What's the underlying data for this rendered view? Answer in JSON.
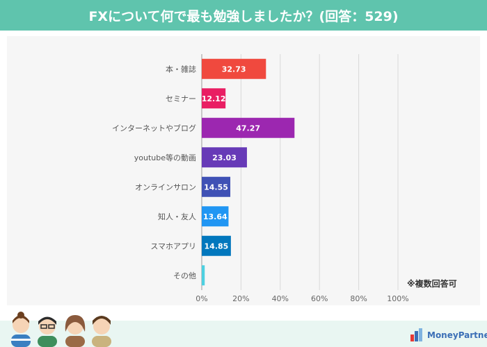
{
  "title": "FXについて何で最も勉強しましたか？(回答：529)",
  "note": "※複数回答可",
  "logo_text": "MoneyPartners",
  "chart_data": {
    "type": "bar",
    "orientation": "horizontal",
    "categories": [
      "本・雑誌",
      "セミナー",
      "インターネットやブログ",
      "youtube等の動画",
      "オンラインサロン",
      "知人・友人",
      "スマホアプリ",
      "その他"
    ],
    "values": [
      32.73,
      12.12,
      47.27,
      23.03,
      14.55,
      13.64,
      14.85,
      1.5
    ],
    "data_labels": [
      "32.73",
      "12.12",
      "47.27",
      "23.03",
      "14.55",
      "13.64",
      "14.85",
      ""
    ],
    "colors": [
      "#f0493e",
      "#e91e63",
      "#9c27b0",
      "#673ab7",
      "#3f51b5",
      "#2196f3",
      "#0277bd",
      "#4dd0e1"
    ],
    "xlim": [
      0,
      100
    ],
    "x_ticks": [
      "0%",
      "20%",
      "40%",
      "60%",
      "80%",
      "100%"
    ],
    "grid": true
  }
}
